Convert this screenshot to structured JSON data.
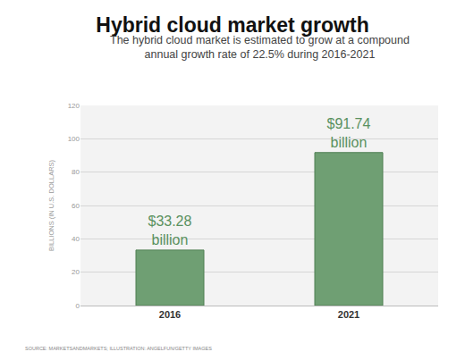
{
  "chart_data": {
    "type": "bar",
    "title": "Hybrid cloud market growth",
    "subtitle": "The hybrid cloud market is estimated to grow at a compound annual growth rate of 22.5% during 2016-2021",
    "y_label": "BILLIONS (IN U.S. DOLLARS)",
    "source": "SOURCE: MARKETSANDMARKETS; ILLUSTRATION: ANGELFUN/GETTY IMAGES",
    "categories": [
      "2016",
      "2021"
    ],
    "values": [
      33.28,
      91.74
    ],
    "value_labels": [
      "$33.28 billion",
      "$91.74 billion"
    ],
    "data_labels": true,
    "color": "#6f9f73",
    "ylim": [
      0,
      120
    ],
    "yticks": [
      0,
      20,
      40,
      60,
      80,
      100,
      120
    ],
    "grid": true
  }
}
